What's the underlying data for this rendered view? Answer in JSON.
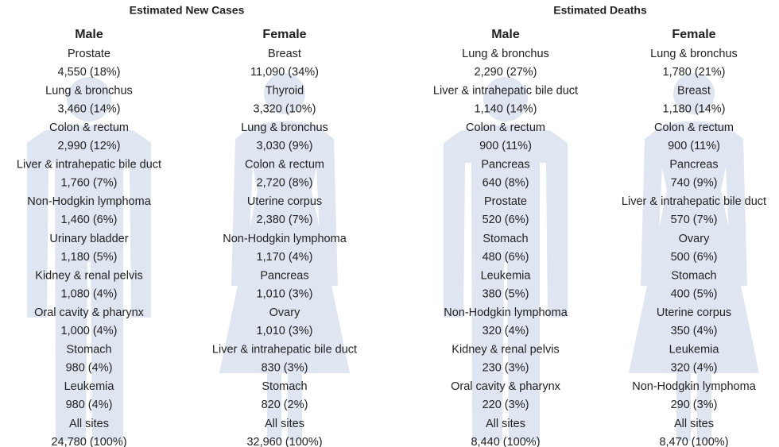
{
  "panels": [
    {
      "title": "Estimated New Cases",
      "columns": [
        {
          "title": "Male",
          "items": [
            {
              "site": "Prostate",
              "stat": "4,550 (18%)"
            },
            {
              "site": "Lung & bronchus",
              "stat": "3,460 (14%)"
            },
            {
              "site": "Colon & rectum",
              "stat": "2,990 (12%)"
            },
            {
              "site": "Liver & intrahepatic bile duct",
              "stat": "1,760 (7%)"
            },
            {
              "site": "Non-Hodgkin lymphoma",
              "stat": "1,460 (6%)"
            },
            {
              "site": "Urinary bladder",
              "stat": "1,180 (5%)"
            },
            {
              "site": "Kidney & renal pelvis",
              "stat": "1,080 (4%)"
            },
            {
              "site": "Oral cavity & pharynx",
              "stat": "1,000 (4%)"
            },
            {
              "site": "Stomach",
              "stat": "980 (4%)"
            },
            {
              "site": "Leukemia",
              "stat": "980 (4%)"
            },
            {
              "site": "All sites",
              "stat": "24,780 (100%)"
            }
          ]
        },
        {
          "title": "Female",
          "items": [
            {
              "site": "Breast",
              "stat": "11,090 (34%)"
            },
            {
              "site": "Thyroid",
              "stat": "3,320 (10%)"
            },
            {
              "site": "Lung & bronchus",
              "stat": "3,030 (9%)"
            },
            {
              "site": "Colon & rectum",
              "stat": "2,720 (8%)"
            },
            {
              "site": "Uterine corpus",
              "stat": "2,380 (7%)"
            },
            {
              "site": "Non-Hodgkin lymphoma",
              "stat": "1,170 (4%)"
            },
            {
              "site": "Pancreas",
              "stat": "1,010 (3%)"
            },
            {
              "site": "Ovary",
              "stat": "1,010 (3%)"
            },
            {
              "site": "Liver & intrahepatic bile duct",
              "stat": "830 (3%)"
            },
            {
              "site": "Stomach",
              "stat": "820 (2%)"
            },
            {
              "site": "All sites",
              "stat": "32,960 (100%)"
            }
          ]
        }
      ]
    },
    {
      "title": "Estimated Deaths",
      "columns": [
        {
          "title": "Male",
          "items": [
            {
              "site": "Lung & bronchus",
              "stat": "2,290 (27%)"
            },
            {
              "site": "Liver & intrahepatic bile duct",
              "stat": "1,140 (14%)"
            },
            {
              "site": "Colon & rectum",
              "stat": "900 (11%)"
            },
            {
              "site": "Pancreas",
              "stat": "640 (8%)"
            },
            {
              "site": "Prostate",
              "stat": "520 (6%)"
            },
            {
              "site": "Stomach",
              "stat": "480 (6%)"
            },
            {
              "site": "Leukemia",
              "stat": "380 (5%)"
            },
            {
              "site": "Non-Hodgkin lymphoma",
              "stat": "320 (4%)"
            },
            {
              "site": "Kidney & renal pelvis",
              "stat": "230 (3%)"
            },
            {
              "site": "Oral cavity & pharynx",
              "stat": "220 (3%)"
            },
            {
              "site": "All sites",
              "stat": "8,440 (100%)"
            }
          ]
        },
        {
          "title": "Female",
          "items": [
            {
              "site": "Lung & bronchus",
              "stat": "1,780 (21%)"
            },
            {
              "site": "Breast",
              "stat": "1,180 (14%)"
            },
            {
              "site": "Colon & rectum",
              "stat": "900 (11%)"
            },
            {
              "site": "Pancreas",
              "stat": "740 (9%)"
            },
            {
              "site": "Liver & intrahepatic bile duct",
              "stat": "570 (7%)"
            },
            {
              "site": "Ovary",
              "stat": "500 (6%)"
            },
            {
              "site": "Stomach",
              "stat": "400 (5%)"
            },
            {
              "site": "Uterine corpus",
              "stat": "350 (4%)"
            },
            {
              "site": "Leukemia",
              "stat": "320 (4%)"
            },
            {
              "site": "Non-Hodgkin lymphoma",
              "stat": "290 (3%)"
            },
            {
              "site": "All sites",
              "stat": "8,470 (100%)"
            }
          ]
        }
      ]
    }
  ]
}
